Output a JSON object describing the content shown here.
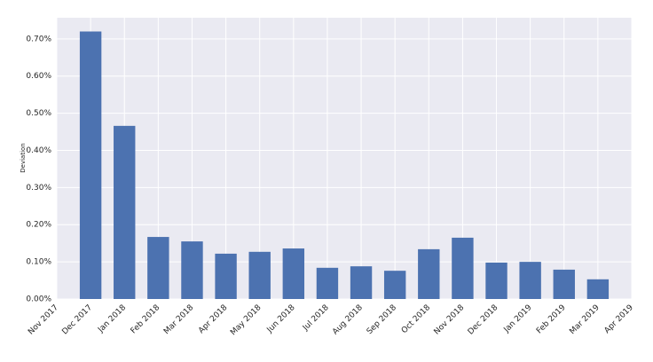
{
  "chart_data": {
    "type": "bar",
    "y_label": "Deviation",
    "categories": [
      "Nov 2017",
      "Dec 2017",
      "Jan 2018",
      "Feb 2018",
      "Mar 2018",
      "Apr 2018",
      "May 2018",
      "Jun 2018",
      "Jul 2018",
      "Aug 2018",
      "Sep 2018",
      "Oct 2018",
      "Nov 2018",
      "Dec 2018",
      "Jan 2019",
      "Feb 2019",
      "Mar 2019",
      "Apr 2019"
    ],
    "values": [
      null,
      0.72,
      0.466,
      0.167,
      0.155,
      0.122,
      0.127,
      0.136,
      0.084,
      0.088,
      0.076,
      0.134,
      0.165,
      0.098,
      0.1,
      0.079,
      0.053,
      null
    ],
    "color": "#4c72b0",
    "ylim": [
      0,
      0.757
    ],
    "yticks": [
      {
        "value": 0,
        "label": "0.00%"
      },
      {
        "value": 0.1,
        "label": "0.10%"
      },
      {
        "value": 0.2,
        "label": "0.20%"
      },
      {
        "value": 0.3,
        "label": "0.30%"
      },
      {
        "value": 0.4,
        "label": "0.40%"
      },
      {
        "value": 0.5,
        "label": "0.50%"
      },
      {
        "value": 0.6,
        "label": "0.60%"
      },
      {
        "value": 0.7,
        "label": "0.70%"
      }
    ],
    "grid": true
  }
}
